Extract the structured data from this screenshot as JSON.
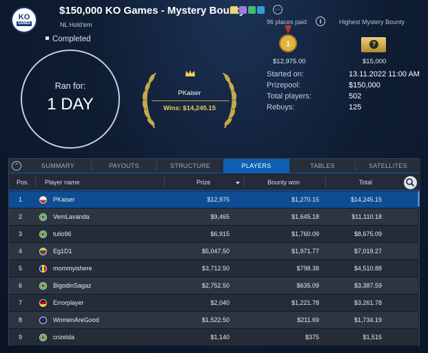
{
  "header": {
    "title": "$150,000 KO Games - Mystery Bounty",
    "subtitle": "NL Hold'em",
    "logo_text": "KO",
    "logo_sub": "GAMES",
    "more_label": "···",
    "places_paid": "96 places paid",
    "highest_bounty_label": "Highest Mystery Bounty"
  },
  "status": "Completed",
  "duration": {
    "label": "Ran for:",
    "value": "1 DAY"
  },
  "winner": {
    "name": "PKaiser",
    "wins": "Wins: $14,245.15"
  },
  "prizes": {
    "first_prize": "$12,975.00",
    "first_medal": "1",
    "highest_bounty": "$15,000",
    "ticket_symbol": "?"
  },
  "info": [
    {
      "label": "Started on:",
      "value": "13.11.2022   11:00 AM"
    },
    {
      "label": "Prizepool:",
      "value": "$150,000"
    },
    {
      "label": "Total players:",
      "value": "502"
    },
    {
      "label": "Rebuys:",
      "value": "125"
    }
  ],
  "tabs": [
    {
      "label": "SUMMARY"
    },
    {
      "label": "PAYOUTS"
    },
    {
      "label": "STRUCTURE"
    },
    {
      "label": "PLAYERS"
    },
    {
      "label": "TABLES"
    },
    {
      "label": "SATELLITES"
    }
  ],
  "active_tab": "PLAYERS",
  "columns": {
    "pos": "Pos.",
    "name": "Player name",
    "prize": "Prize",
    "bounty": "Bounty won",
    "total": "Total"
  },
  "players": [
    {
      "pos": "1",
      "name": "PKaiser",
      "prize": "$12,975",
      "bounty": "$1,270.15",
      "total": "$14,245.15",
      "flag": "chile-flag"
    },
    {
      "pos": "2",
      "name": "VemLavanda",
      "prize": "$9,465",
      "bounty": "$1,645.18",
      "total": "$11,110.18",
      "flag": "brazil-flag"
    },
    {
      "pos": "3",
      "name": "tulio96",
      "prize": "$6,915",
      "bounty": "$1,760.09",
      "total": "$8,675.09",
      "flag": "brazil-flag"
    },
    {
      "pos": "4",
      "name": "Eg1D1",
      "prize": "$5,047.50",
      "bounty": "$1,971.77",
      "total": "$7,019.27",
      "flag": "lithuania-flag"
    },
    {
      "pos": "5",
      "name": "mommyishere",
      "prize": "$3,712.50",
      "bounty": "$798.38",
      "total": "$4,510.88",
      "flag": "romania-flag"
    },
    {
      "pos": "6",
      "name": "BigodinSagaz",
      "prize": "$2,752.50",
      "bounty": "$635.09",
      "total": "$3,387.59",
      "flag": "brazil-flag"
    },
    {
      "pos": "7",
      "name": "Errorplayer",
      "prize": "$2,040",
      "bounty": "$1,221.78",
      "total": "$3,261.78",
      "flag": "germany-flag"
    },
    {
      "pos": "8",
      "name": "WomenAreGood",
      "prize": "$1,522.50",
      "bounty": "$211.69",
      "total": "$1,734.19",
      "flag": "globe-flag"
    },
    {
      "pos": "9",
      "name": "crizelda",
      "prize": "$1,140",
      "bounty": "$375",
      "total": "$1,515",
      "flag": "brazil-flag"
    }
  ],
  "colors": {
    "accent": "#0d5fb3",
    "gold": "#f3cf57",
    "selected_row": "#0e4d93"
  }
}
